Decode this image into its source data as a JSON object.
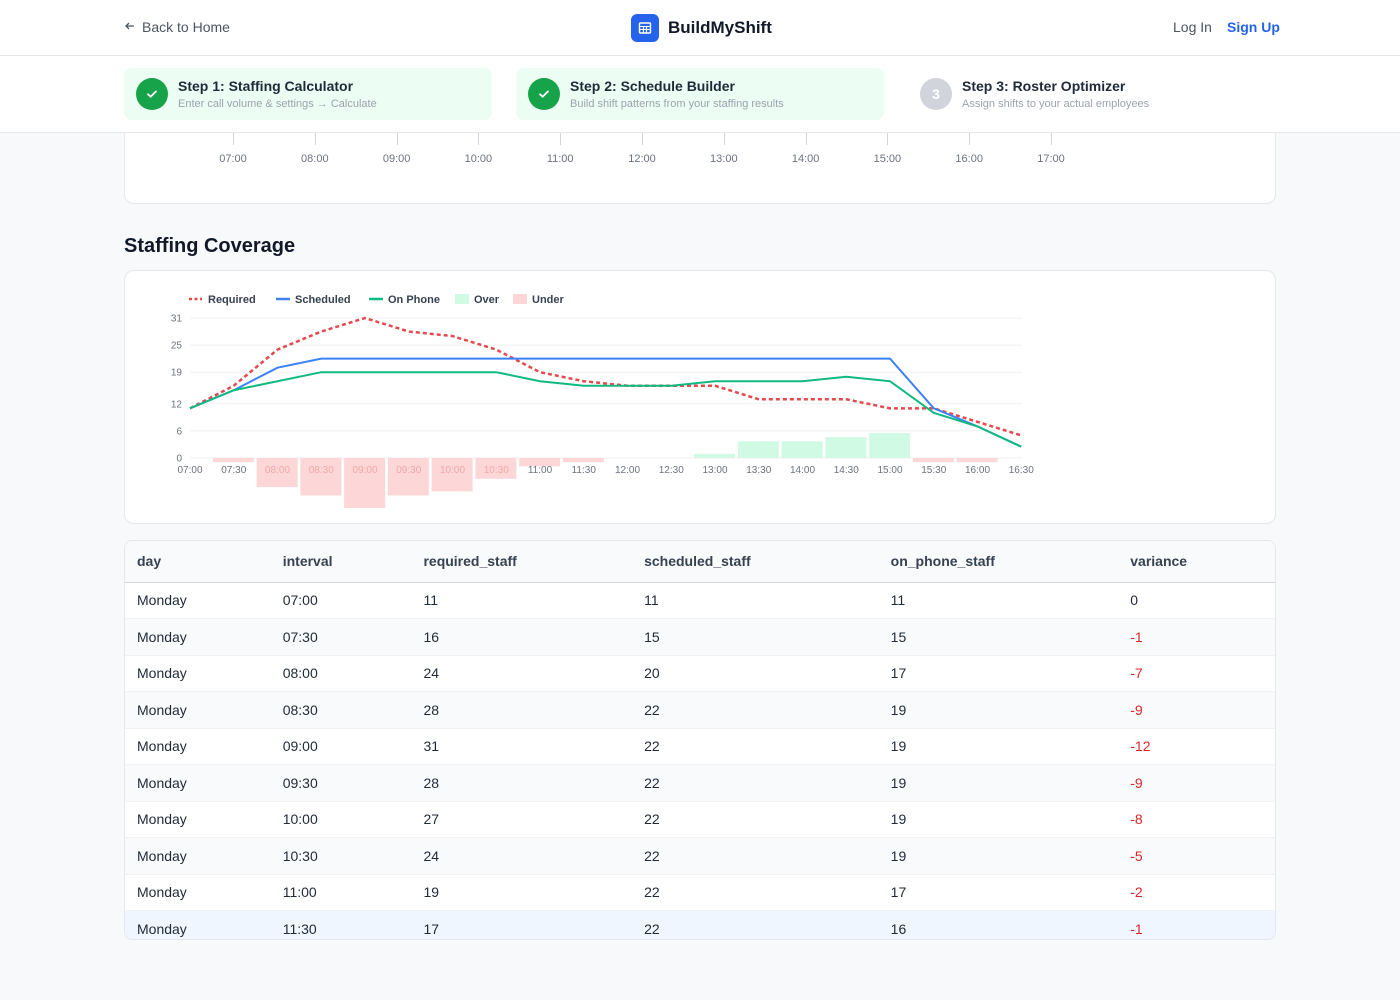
{
  "header": {
    "back_label": "Back to Home",
    "brand": "BuildMyShift",
    "login": "Log In",
    "signup": "Sign Up"
  },
  "steps": [
    {
      "title": "Step 1: Staffing Calculator",
      "subtitle": "Enter call volume & settings → Calculate",
      "status": "done"
    },
    {
      "title": "Step 2: Schedule Builder",
      "subtitle": "Build shift patterns from your staffing results",
      "status": "done"
    },
    {
      "title": "Step 3: Roster Optimizer",
      "subtitle": "Assign shifts to your actual employees",
      "status": "pending",
      "number": "3"
    }
  ],
  "top_chart_axis": [
    "07:00",
    "08:00",
    "09:00",
    "10:00",
    "11:00",
    "12:00",
    "13:00",
    "14:00",
    "15:00",
    "16:00",
    "17:00"
  ],
  "section_title": "Staffing Coverage",
  "chart_data": {
    "type": "line",
    "legend": [
      "Required",
      "Scheduled",
      "On Phone",
      "Over",
      "Under"
    ],
    "legend_position": "top-left",
    "categories": [
      "07:00",
      "07:30",
      "08:00",
      "08:30",
      "09:00",
      "09:30",
      "10:00",
      "10:30",
      "11:00",
      "11:30",
      "12:00",
      "12:30",
      "13:00",
      "13:30",
      "14:00",
      "14:30",
      "15:00",
      "15:30",
      "16:00",
      "16:30"
    ],
    "y_ticks": [
      "0",
      "6",
      "12",
      "19",
      "25",
      "31"
    ],
    "ylim": [
      0,
      31
    ],
    "grid": true,
    "series": [
      {
        "name": "Required",
        "style": "dashed",
        "color": "#e5484d",
        "values": [
          11,
          16,
          24,
          28,
          31,
          28,
          27,
          24,
          19,
          17,
          16,
          16,
          16,
          13,
          13,
          13,
          11,
          11,
          8,
          5
        ]
      },
      {
        "name": "Scheduled",
        "style": "solid",
        "color": "#3b82f6",
        "values": [
          11,
          15,
          20,
          22,
          22,
          22,
          22,
          22,
          22,
          22,
          22,
          22,
          22,
          22,
          22,
          22,
          22,
          11,
          7,
          2.5
        ]
      },
      {
        "name": "On Phone",
        "style": "solid",
        "color": "#10b981",
        "values": [
          11,
          15,
          17,
          19,
          19,
          19,
          19,
          19,
          17,
          16,
          16,
          16,
          17,
          17,
          17,
          18,
          17,
          10,
          7,
          2.5
        ]
      }
    ],
    "variance_bars": {
      "over_color": "#d1fae5",
      "under_color": "#fdd7d7",
      "values": [
        0,
        -1,
        -7,
        -9,
        -12,
        -9,
        -8,
        -5,
        -2,
        -1,
        0,
        0,
        1,
        4,
        4,
        5,
        6,
        -1,
        -1,
        0
      ]
    }
  },
  "table": {
    "columns": [
      "day",
      "interval",
      "required_staff",
      "scheduled_staff",
      "on_phone_staff",
      "variance"
    ],
    "rows": [
      [
        "Monday",
        "07:00",
        "11",
        "11",
        "11",
        "0"
      ],
      [
        "Monday",
        "07:30",
        "16",
        "15",
        "15",
        "-1"
      ],
      [
        "Monday",
        "08:00",
        "24",
        "20",
        "17",
        "-7"
      ],
      [
        "Monday",
        "08:30",
        "28",
        "22",
        "19",
        "-9"
      ],
      [
        "Monday",
        "09:00",
        "31",
        "22",
        "19",
        "-12"
      ],
      [
        "Monday",
        "09:30",
        "28",
        "22",
        "19",
        "-9"
      ],
      [
        "Monday",
        "10:00",
        "27",
        "22",
        "19",
        "-8"
      ],
      [
        "Monday",
        "10:30",
        "24",
        "22",
        "19",
        "-5"
      ],
      [
        "Monday",
        "11:00",
        "19",
        "22",
        "17",
        "-2"
      ],
      [
        "Monday",
        "11:30",
        "17",
        "22",
        "16",
        "-1"
      ]
    ]
  }
}
